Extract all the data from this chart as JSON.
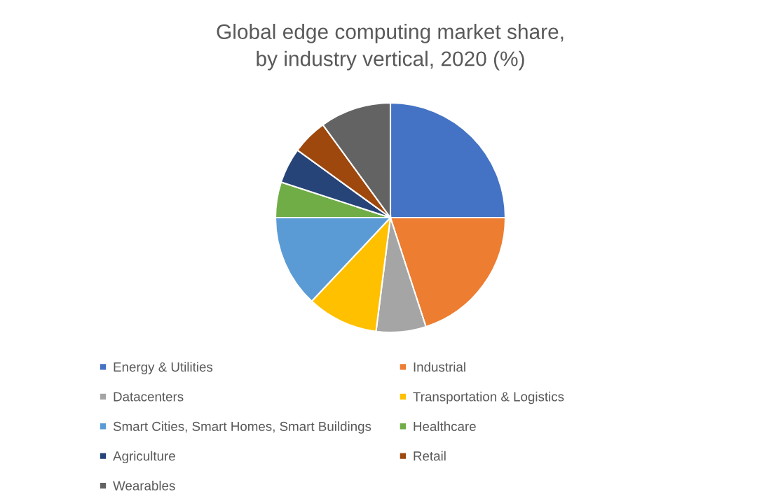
{
  "chart_data": {
    "type": "pie",
    "title": "Global edge computing market share,\nby industry vertical, 2020 (%)",
    "categories": [
      "Energy & Utilities",
      "Industrial",
      "Datacenters",
      "Transportation & Logistics",
      "Smart Cities, Smart Homes, Smart Buildings",
      "Healthcare",
      "Agriculture",
      "Retail",
      "Wearables"
    ],
    "values": [
      25,
      20,
      7,
      10,
      13,
      5,
      5,
      5,
      10
    ],
    "colors": [
      "#4472c4",
      "#ed7d31",
      "#a5a5a5",
      "#ffc000",
      "#5b9bd5",
      "#70ad47",
      "#264478",
      "#9e480e",
      "#636363"
    ],
    "legend": "bottom"
  }
}
